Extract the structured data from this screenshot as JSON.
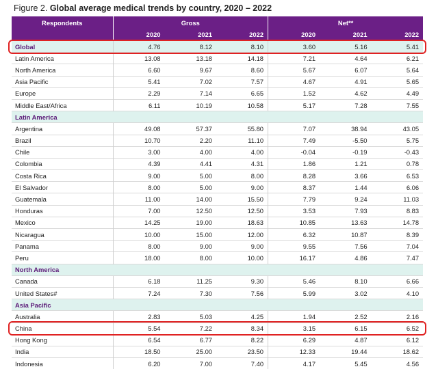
{
  "figure": {
    "label": "Figure 2.",
    "title": "Global average medical trends by country, 2020 – 2022"
  },
  "header": {
    "respondents": "Respondents",
    "gross": "Gross",
    "net": "Net**",
    "years": [
      "2020",
      "2021",
      "2022",
      "2020",
      "2021",
      "2022"
    ]
  },
  "rows": [
    {
      "kind": "highlight",
      "name": "Global",
      "values": [
        "4.76",
        "8.12",
        "8.10",
        "3.60",
        "5.16",
        "5.41"
      ]
    },
    {
      "kind": "data",
      "name": "Latin America",
      "values": [
        "13.08",
        "13.18",
        "14.18",
        "7.21",
        "4.64",
        "6.21"
      ]
    },
    {
      "kind": "data",
      "name": "North America",
      "values": [
        "6.60",
        "9.67",
        "8.60",
        "5.67",
        "6.07",
        "5.64"
      ]
    },
    {
      "kind": "data",
      "name": "Asia Pacific",
      "values": [
        "5.41",
        "7.02",
        "7.57",
        "4.67",
        "4.91",
        "5.65"
      ]
    },
    {
      "kind": "data",
      "name": "Europe",
      "values": [
        "2.29",
        "7.14",
        "6.65",
        "1.52",
        "4.62",
        "4.49"
      ]
    },
    {
      "kind": "data",
      "name": "Middle East/Africa",
      "values": [
        "6.11",
        "10.19",
        "10.58",
        "5.17",
        "7.28",
        "7.55"
      ]
    },
    {
      "kind": "section",
      "name": "Latin America"
    },
    {
      "kind": "data",
      "name": "Argentina",
      "values": [
        "49.08",
        "57.37",
        "55.80",
        "7.07",
        "38.94",
        "43.05"
      ]
    },
    {
      "kind": "data",
      "name": "Brazil",
      "values": [
        "10.70",
        "2.20",
        "11.10",
        "7.49",
        "-5.50",
        "5.75"
      ]
    },
    {
      "kind": "data",
      "name": "Chile",
      "values": [
        "3.00",
        "4.00",
        "4.00",
        "-0.04",
        "-0.19",
        "-0.43"
      ]
    },
    {
      "kind": "data",
      "name": "Colombia",
      "values": [
        "4.39",
        "4.41",
        "4.31",
        "1.86",
        "1.21",
        "0.78"
      ]
    },
    {
      "kind": "data",
      "name": "Costa Rica",
      "values": [
        "9.00",
        "5.00",
        "8.00",
        "8.28",
        "3.66",
        "6.53"
      ]
    },
    {
      "kind": "data",
      "name": "El Salvador",
      "values": [
        "8.00",
        "5.00",
        "9.00",
        "8.37",
        "1.44",
        "6.06"
      ]
    },
    {
      "kind": "data",
      "name": "Guatemala",
      "values": [
        "11.00",
        "14.00",
        "15.50",
        "7.79",
        "9.24",
        "11.03"
      ]
    },
    {
      "kind": "data",
      "name": "Honduras",
      "values": [
        "7.00",
        "12.50",
        "12.50",
        "3.53",
        "7.93",
        "8.83"
      ]
    },
    {
      "kind": "data",
      "name": "Mexico",
      "values": [
        "14.25",
        "19.00",
        "18.63",
        "10.85",
        "13.63",
        "14.78"
      ]
    },
    {
      "kind": "data",
      "name": "Nicaragua",
      "values": [
        "10.00",
        "15.00",
        "12.00",
        "6.32",
        "10.87",
        "8.39"
      ]
    },
    {
      "kind": "data",
      "name": "Panama",
      "values": [
        "8.00",
        "9.00",
        "9.00",
        "9.55",
        "7.56",
        "7.04"
      ]
    },
    {
      "kind": "data",
      "name": "Peru",
      "values": [
        "18.00",
        "8.00",
        "10.00",
        "16.17",
        "4.86",
        "7.47"
      ]
    },
    {
      "kind": "section",
      "name": "North America"
    },
    {
      "kind": "data",
      "name": "Canada",
      "values": [
        "6.18",
        "11.25",
        "9.30",
        "5.46",
        "8.10",
        "6.66"
      ]
    },
    {
      "kind": "data",
      "name": "United States#",
      "values": [
        "7.24",
        "7.30",
        "7.56",
        "5.99",
        "3.02",
        "4.10"
      ]
    },
    {
      "kind": "section",
      "name": "Asia Pacific"
    },
    {
      "kind": "data",
      "name": "Australia",
      "values": [
        "2.83",
        "5.03",
        "4.25",
        "1.94",
        "2.52",
        "2.16"
      ]
    },
    {
      "kind": "data",
      "name": "China",
      "marked": true,
      "values": [
        "5.54",
        "7.22",
        "8.34",
        "3.15",
        "6.15",
        "6.52"
      ]
    },
    {
      "kind": "data",
      "name": "Hong Kong",
      "values": [
        "6.54",
        "6.77",
        "8.22",
        "6.29",
        "4.87",
        "6.12"
      ]
    },
    {
      "kind": "data",
      "name": "India",
      "values": [
        "18.50",
        "25.00",
        "23.50",
        "12.33",
        "19.44",
        "18.62"
      ]
    },
    {
      "kind": "data",
      "name": "Indonesia",
      "values": [
        "6.20",
        "7.00",
        "7.40",
        "4.17",
        "5.45",
        "4.56"
      ]
    }
  ],
  "colors": {
    "header_bg": "#6b1f86",
    "section_bg": "#def2ee",
    "section_text": "#5b1a78",
    "highlight_border": "#e02222"
  }
}
